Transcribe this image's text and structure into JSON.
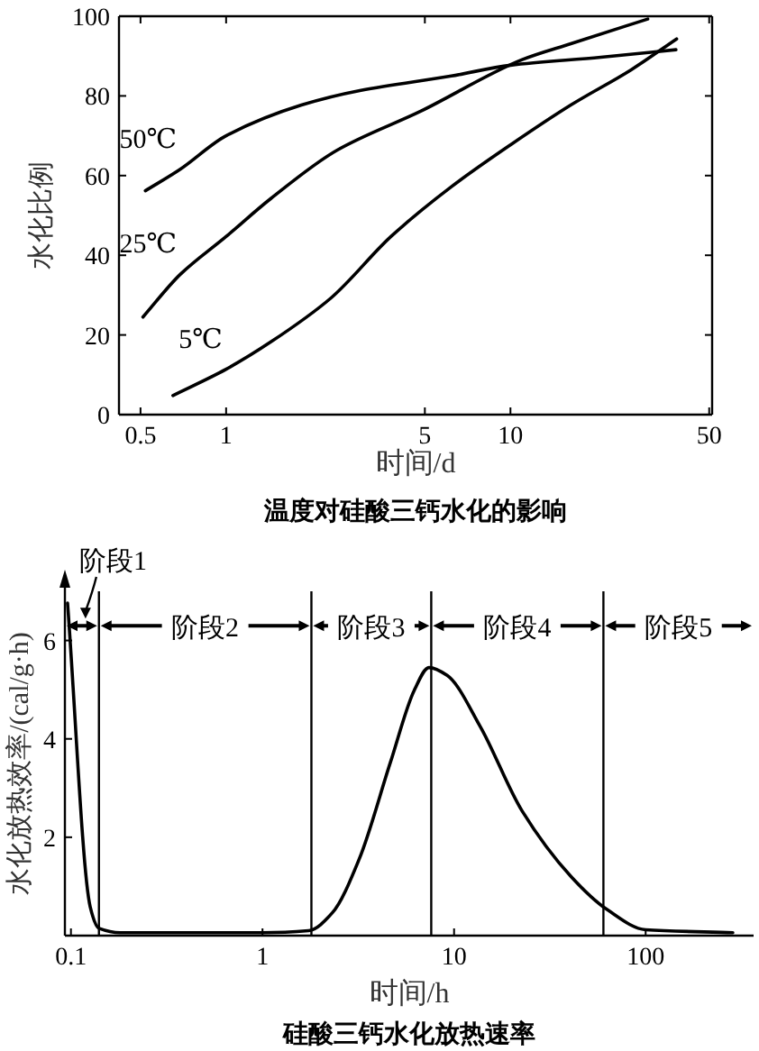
{
  "chart_data": [
    {
      "type": "line",
      "title": "温度对硅酸三钙水化的影响",
      "xlabel": "时间/d",
      "ylabel": "水化比例",
      "log": "x",
      "xlim": [
        0.42,
        51.2
      ],
      "xticks": [
        0.5,
        1,
        5,
        10,
        50
      ],
      "ylim": [
        0,
        100
      ],
      "yticks": [
        0,
        20,
        40,
        60,
        80,
        100
      ],
      "grid": false,
      "legend": false,
      "marker": "none",
      "line_style": "solid",
      "series": [
        {
          "name": "50℃",
          "color": "#000000",
          "x": [
            0.52,
            0.69,
            1,
            1.84,
            2.98,
            6.2,
            10,
            20.8,
            38.2
          ],
          "values": [
            56.2,
            61.6,
            70,
            77.7,
            81.4,
            85,
            87.7,
            89.7,
            91.6
          ]
        },
        {
          "name": "25℃",
          "color": "#000000",
          "x": [
            0.51,
            0.69,
            1,
            1.44,
            2.46,
            4.85,
            11,
            16.3,
            30.4
          ],
          "values": [
            24.5,
            35.2,
            44.7,
            54.3,
            66.4,
            76.2,
            89.1,
            93.1,
            99.3
          ]
        },
        {
          "name": "5℃",
          "color": "#000000",
          "x": [
            0.65,
            1,
            1.44,
            2.34,
            3.8,
            6.2,
            10,
            16.3,
            26.5,
            38.4
          ],
          "values": [
            4.8,
            11.4,
            18.3,
            29.3,
            44.7,
            57.2,
            67.7,
            77.7,
            86.5,
            94.3
          ]
        }
      ]
    },
    {
      "type": "line",
      "title": "硅酸三钙水化放热速率",
      "xlabel": "时间/h",
      "ylabel": "水化放热效率/(cal/g·h)",
      "log": "x",
      "xlim": [
        0.093,
        366
      ],
      "xticks": [
        0.1,
        1,
        10,
        100
      ],
      "ylim": [
        0,
        7
      ],
      "yticks": [
        2,
        4,
        6
      ],
      "grid": false,
      "legend": false,
      "marker": "none",
      "line_style": "solid",
      "series": [
        {
          "color": "#000000",
          "x": [
            0.096,
            0.126,
            0.14,
            0.181,
            1,
            1.74,
            2.31,
            3.2,
            4.65,
            6.2,
            7.4,
            9.2,
            13.7,
            22.6,
            40.8,
            62.9,
            100,
            285
          ],
          "values": [
            6.76,
            0.59,
            0.15,
            0.06,
            0.06,
            0.1,
            0.46,
            1.56,
            3.52,
            4.99,
            5.45,
            5.29,
            4.25,
            2.54,
            1.2,
            0.53,
            0.12,
            0.06
          ]
        }
      ],
      "ref_lines": [
        {
          "axis": "x",
          "value": 0.14
        },
        {
          "axis": "x",
          "value": 1.8
        },
        {
          "axis": "x",
          "value": 7.6
        },
        {
          "axis": "x",
          "value": 60.2
        }
      ],
      "annotations": [
        "阶段1",
        "阶段2",
        "阶段3",
        "阶段4",
        "阶段5"
      ]
    }
  ]
}
